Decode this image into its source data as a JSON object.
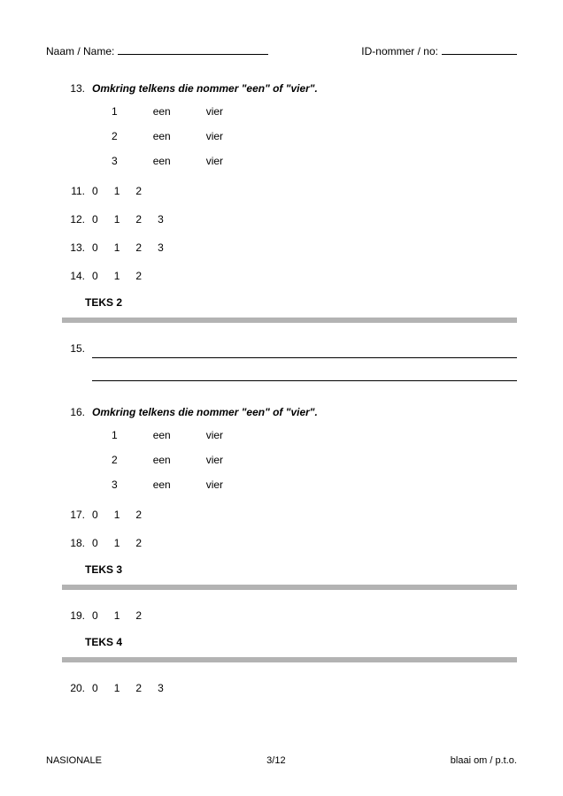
{
  "header": {
    "left_label": "Naam / Name:",
    "right_label": "ID-nommer / no:",
    "left_blank_width": 170,
    "right_blank_width": 85
  },
  "section1": {
    "number": "13.",
    "prompt": "Omkring telkens die nommer \"een\" of \"vier\".",
    "options": [
      {
        "label": "1",
        "a": "een",
        "b": "vier"
      },
      {
        "label": "2",
        "a": "een",
        "b": "vier"
      },
      {
        "label": "3",
        "a": "een",
        "b": "vier"
      }
    ]
  },
  "rows1": [
    {
      "num": "11.",
      "vals": [
        "0",
        "1",
        "2"
      ]
    },
    {
      "num": "12.",
      "vals": [
        "0",
        "1",
        "2",
        "3"
      ]
    },
    {
      "num": "13.",
      "vals": [
        "0",
        "1",
        "2",
        "3"
      ]
    },
    {
      "num": "14.",
      "vals": [
        "0",
        "1",
        "2"
      ]
    }
  ],
  "text2_label": "TEKS 2",
  "q15": {
    "num": "15."
  },
  "section2": {
    "number": "16.",
    "prompt": "Omkring telkens die nommer \"een\" of \"vier\".",
    "options": [
      {
        "label": "1",
        "a": "een",
        "b": "vier"
      },
      {
        "label": "2",
        "a": "een",
        "b": "vier"
      },
      {
        "label": "3",
        "a": "een",
        "b": "vier"
      }
    ]
  },
  "rows2": [
    {
      "num": "17.",
      "vals": [
        "0",
        "1",
        "2"
      ]
    },
    {
      "num": "18.",
      "vals": [
        "0",
        "1",
        "2"
      ]
    }
  ],
  "text3_label": "TEKS 3",
  "rows3": [
    {
      "num": "19.",
      "vals": [
        "0",
        "1",
        "2"
      ]
    }
  ],
  "text4_label": "TEKS 4",
  "rows4": [
    {
      "num": "20.",
      "vals": [
        "0",
        "1",
        "2",
        "3"
      ]
    }
  ],
  "footer": {
    "left": "NASIONALE",
    "center": "3/12",
    "right": "blaai om / p.t.o."
  }
}
